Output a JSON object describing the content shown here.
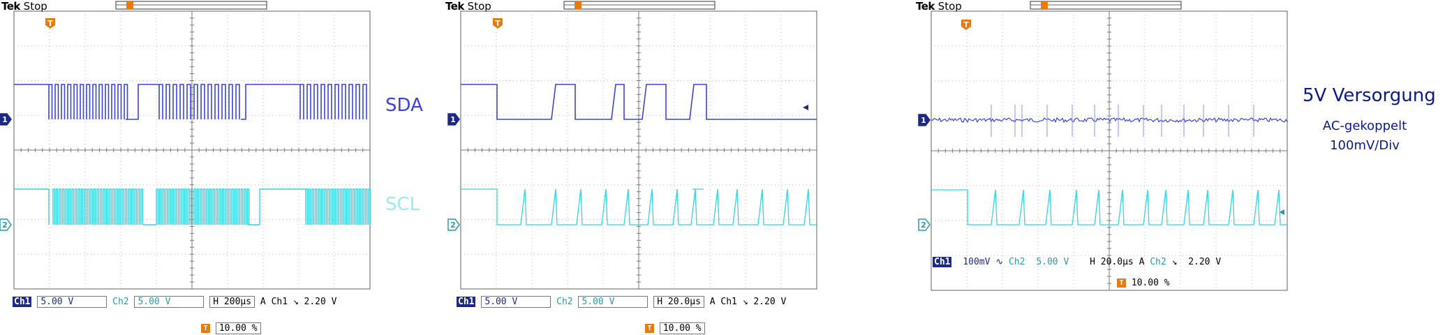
{
  "colors": {
    "ch1": "#3a44d8",
    "ch2": "#2fd5e2",
    "grid": "#7a7a7a",
    "trigger": "#e87b10",
    "chbox": "#1c2a86"
  },
  "scopes": [
    {
      "brand": "Tek",
      "state": "Stop",
      "trigger_marker": "T",
      "ch1_marker": "1",
      "ch2_marker": "2",
      "ch1_label": "Ch1",
      "ch1_value": "5.00 V",
      "ch2_label": "Ch2",
      "ch2_value": "5.00 V",
      "horizontal": "H 200µs",
      "acq": "A",
      "trig_source": "Ch1",
      "trig_slope": "⌐",
      "trig_level": "2.20 V",
      "trig_pos": "10.00 %"
    },
    {
      "brand": "Tek",
      "state": "Stop",
      "trigger_marker": "T",
      "ch1_marker": "1",
      "ch2_marker": "2",
      "ch1_label": "Ch1",
      "ch1_value": "5.00 V",
      "ch2_label": "Ch2",
      "ch2_value": "5.00 V",
      "horizontal": "H 20.0µs",
      "acq": "A",
      "trig_source": "Ch1",
      "trig_slope": "⌐",
      "trig_level": "2.20 V",
      "trig_pos": "10.00 %"
    },
    {
      "brand": "Tek",
      "state": "Stop",
      "trigger_marker": "T",
      "ch1_marker": "1",
      "ch2_marker": "2",
      "ch1_label": "Ch1",
      "ch1_value": "100mV",
      "ch2_label": "Ch2",
      "ch2_value": "5.00 V",
      "horizontal": "H 20.0µs",
      "acq": "A",
      "trig_source": "Ch2",
      "trig_slope": "⌐",
      "trig_level": "2.20 V",
      "trig_pos": "10.00 %"
    }
  ],
  "labels": {
    "sda": "SDA",
    "scl": "SCL",
    "supply_title": "5V Versorgung",
    "supply_coupling": "AC-gekoppelt",
    "supply_scale": "100mV/Div"
  }
}
